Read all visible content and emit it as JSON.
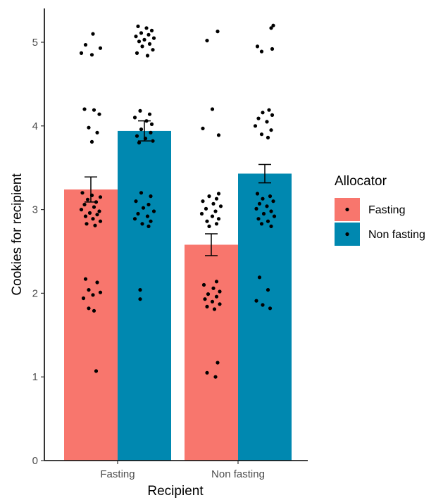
{
  "chart_data": {
    "type": "bar",
    "xlabel": "Recipient",
    "ylabel": "Cookies for recipient",
    "ylim": [
      0,
      5.4
    ],
    "yticks": [
      0,
      1,
      2,
      3,
      4,
      5
    ],
    "categories": [
      "Fasting",
      "Non fasting"
    ],
    "legend": {
      "title": "Allocator",
      "position": "right"
    },
    "grid": false,
    "series": [
      {
        "name": "Fasting",
        "color": "#F8766D",
        "values": [
          3.24,
          2.58
        ],
        "error": [
          0.15,
          0.13
        ]
      },
      {
        "name": "Non fasting",
        "color": "#0088B0",
        "values": [
          3.94,
          3.43
        ],
        "error": [
          0.12,
          0.11
        ]
      }
    ],
    "points": [
      [
        [
          [
            5.1,
            0.2
          ],
          [
            4.97,
            -0.5
          ],
          [
            4.93,
            0.9
          ],
          [
            4.85,
            0.1
          ],
          [
            4.87,
            -0.9
          ],
          [
            4.2,
            -0.6
          ],
          [
            4.19,
            0.3
          ],
          [
            4.14,
            0.8
          ],
          [
            3.98,
            -0.2
          ],
          [
            3.92,
            0.6
          ],
          [
            3.81,
            0.1
          ],
          [
            3.2,
            -0.8
          ],
          [
            3.17,
            0.1
          ],
          [
            3.15,
            0.9
          ],
          [
            3.12,
            -0.3
          ],
          [
            3.09,
            0.5
          ],
          [
            3.06,
            -0.6
          ],
          [
            3.03,
            0.3
          ],
          [
            3.0,
            -0.9
          ],
          [
            2.98,
            0.8
          ],
          [
            2.96,
            -0.1
          ],
          [
            2.94,
            0.6
          ],
          [
            2.92,
            -0.5
          ],
          [
            2.89,
            0.2
          ],
          [
            2.86,
            0.9
          ],
          [
            2.83,
            -0.4
          ],
          [
            2.81,
            0.4
          ],
          [
            2.17,
            -0.5
          ],
          [
            2.13,
            0.6
          ],
          [
            2.04,
            -0.2
          ],
          [
            2.01,
            0.9
          ],
          [
            1.98,
            0.2
          ],
          [
            1.94,
            -0.7
          ],
          [
            1.82,
            -0.2
          ],
          [
            1.79,
            0.3
          ],
          [
            1.07,
            0.5
          ]
        ],
        [
          [
            5.19,
            -0.6
          ],
          [
            5.17,
            0.2
          ],
          [
            5.14,
            0.7
          ],
          [
            5.11,
            -0.3
          ],
          [
            5.09,
            0.4
          ],
          [
            5.07,
            -0.8
          ],
          [
            5.05,
            0.9
          ],
          [
            5.03,
            0.0
          ],
          [
            5.01,
            -0.5
          ],
          [
            4.98,
            0.5
          ],
          [
            4.95,
            -0.2
          ],
          [
            4.91,
            0.8
          ],
          [
            4.87,
            -0.7
          ],
          [
            4.84,
            0.3
          ],
          [
            4.18,
            -0.4
          ],
          [
            4.14,
            0.5
          ],
          [
            4.1,
            -0.9
          ],
          [
            4.06,
            0.2
          ],
          [
            4.02,
            0.7
          ],
          [
            3.96,
            -0.3
          ],
          [
            3.92,
            0.6
          ],
          [
            3.88,
            -0.7
          ],
          [
            3.85,
            0.1
          ],
          [
            3.82,
            0.8
          ],
          [
            3.8,
            -0.5
          ],
          [
            3.2,
            -0.3
          ],
          [
            3.16,
            0.6
          ],
          [
            3.1,
            -0.8
          ],
          [
            3.06,
            0.4
          ],
          [
            3.02,
            -0.1
          ],
          [
            2.98,
            0.9
          ],
          [
            2.95,
            -0.6
          ],
          [
            2.92,
            0.3
          ],
          [
            2.89,
            -0.9
          ],
          [
            2.86,
            0.6
          ],
          [
            2.83,
            -0.2
          ],
          [
            2.8,
            0.4
          ],
          [
            2.04,
            -0.4
          ],
          [
            1.93,
            -0.4
          ]
        ]
      ],
      [
        [
          [
            5.13,
            0.6
          ],
          [
            5.02,
            -0.4
          ],
          [
            4.2,
            0.1
          ],
          [
            3.97,
            -0.8
          ],
          [
            3.89,
            0.7
          ],
          [
            3.19,
            0.7
          ],
          [
            3.16,
            -0.2
          ],
          [
            3.13,
            0.5
          ],
          [
            3.1,
            -0.8
          ],
          [
            3.07,
            0.2
          ],
          [
            3.04,
            0.9
          ],
          [
            3.01,
            -0.5
          ],
          [
            2.98,
            0.4
          ],
          [
            2.95,
            -0.9
          ],
          [
            2.92,
            0.1
          ],
          [
            2.89,
            0.7
          ],
          [
            2.86,
            -0.4
          ],
          [
            2.83,
            0.5
          ],
          [
            2.8,
            -0.2
          ],
          [
            2.14,
            0.5
          ],
          [
            2.1,
            -0.7
          ],
          [
            2.06,
            0.2
          ],
          [
            2.02,
            0.8
          ],
          [
            1.99,
            -0.3
          ],
          [
            1.96,
            0.5
          ],
          [
            1.93,
            -0.6
          ],
          [
            1.9,
            0.1
          ],
          [
            1.87,
            0.8
          ],
          [
            1.84,
            -0.4
          ],
          [
            1.81,
            0.3
          ],
          [
            1.17,
            0.6
          ],
          [
            1.05,
            -0.4
          ],
          [
            1.0,
            0.4
          ]
        ],
        [
          [
            5.2,
            0.8
          ],
          [
            5.17,
            0.6
          ],
          [
            4.95,
            -0.7
          ],
          [
            4.92,
            0.7
          ],
          [
            4.89,
            -0.3
          ],
          [
            4.19,
            0.4
          ],
          [
            4.16,
            -0.2
          ],
          [
            4.13,
            0.7
          ],
          [
            4.09,
            -0.6
          ],
          [
            4.05,
            0.2
          ],
          [
            4.0,
            -0.9
          ],
          [
            3.95,
            0.6
          ],
          [
            3.9,
            -0.3
          ],
          [
            3.86,
            0.3
          ],
          [
            3.19,
            -0.7
          ],
          [
            3.16,
            0.5
          ],
          [
            3.13,
            -0.2
          ],
          [
            3.1,
            0.8
          ],
          [
            3.07,
            -0.5
          ],
          [
            3.04,
            0.2
          ],
          [
            3.01,
            -0.8
          ],
          [
            2.98,
            0.6
          ],
          [
            2.95,
            -0.1
          ],
          [
            2.92,
            0.9
          ],
          [
            2.89,
            -0.6
          ],
          [
            2.86,
            0.3
          ],
          [
            2.83,
            -0.3
          ],
          [
            2.8,
            0.6
          ],
          [
            2.19,
            -0.5
          ],
          [
            2.04,
            0.3
          ],
          [
            1.91,
            -0.8
          ],
          [
            1.86,
            -0.2
          ],
          [
            1.82,
            0.5
          ]
        ]
      ]
    ]
  }
}
